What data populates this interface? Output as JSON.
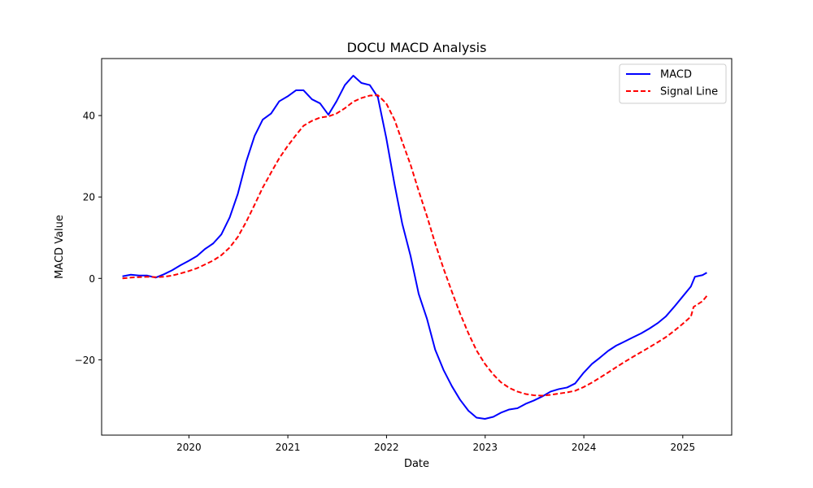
{
  "chart_data": {
    "type": "line",
    "title": "DOCU MACD Analysis",
    "xlabel": "Date",
    "ylabel": "MACD Value",
    "x_axis_type": "date",
    "xlim": [
      "2019-02-12",
      "2025-07-01"
    ],
    "ylim": [
      -38.5,
      54
    ],
    "x_ticks": [
      {
        "date": "2020-01-01",
        "label": "2020"
      },
      {
        "date": "2021-01-01",
        "label": "2021"
      },
      {
        "date": "2022-01-01",
        "label": "2022"
      },
      {
        "date": "2023-01-01",
        "label": "2023"
      },
      {
        "date": "2024-01-01",
        "label": "2024"
      },
      {
        "date": "2025-01-01",
        "label": "2025"
      }
    ],
    "y_ticks": [
      {
        "value": -20,
        "label": "−20"
      },
      {
        "value": 0,
        "label": "0"
      },
      {
        "value": 20,
        "label": "20"
      },
      {
        "value": 40,
        "label": "40"
      }
    ],
    "grid": false,
    "legend_position": "top-right",
    "series": [
      {
        "name": "MACD",
        "color": "#0000ff",
        "style": "solid",
        "points": [
          [
            "2019-04-30",
            0.5
          ],
          [
            "2019-05-31",
            0.9
          ],
          [
            "2019-06-30",
            0.7
          ],
          [
            "2019-07-31",
            0.7
          ],
          [
            "2019-08-31",
            0.2
          ],
          [
            "2019-09-30",
            1.0
          ],
          [
            "2019-10-31",
            2.0
          ],
          [
            "2019-11-30",
            3.2
          ],
          [
            "2019-12-31",
            4.3
          ],
          [
            "2020-01-31",
            5.5
          ],
          [
            "2020-02-29",
            7.2
          ],
          [
            "2020-03-31",
            8.6
          ],
          [
            "2020-04-30",
            10.8
          ],
          [
            "2020-05-31",
            15.0
          ],
          [
            "2020-06-30",
            20.8
          ],
          [
            "2020-07-31",
            28.7
          ],
          [
            "2020-08-31",
            35.0
          ],
          [
            "2020-09-30",
            39.0
          ],
          [
            "2020-10-31",
            40.5
          ],
          [
            "2020-11-30",
            43.5
          ],
          [
            "2020-12-31",
            44.7
          ],
          [
            "2021-01-31",
            46.2
          ],
          [
            "2021-02-28",
            46.2
          ],
          [
            "2021-03-31",
            44.0
          ],
          [
            "2021-04-30",
            43.0
          ],
          [
            "2021-05-31",
            40.2
          ],
          [
            "2021-06-30",
            43.5
          ],
          [
            "2021-07-31",
            47.5
          ],
          [
            "2021-08-31",
            49.8
          ],
          [
            "2021-09-30",
            48.0
          ],
          [
            "2021-10-31",
            47.5
          ],
          [
            "2021-11-30",
            44.5
          ],
          [
            "2021-12-31",
            34.5
          ],
          [
            "2022-01-31",
            23.0
          ],
          [
            "2022-02-28",
            13.5
          ],
          [
            "2022-03-31",
            5.5
          ],
          [
            "2022-04-30",
            -3.8
          ],
          [
            "2022-05-31",
            -10.0
          ],
          [
            "2022-06-30",
            -17.5
          ],
          [
            "2022-07-31",
            -22.5
          ],
          [
            "2022-08-31",
            -26.5
          ],
          [
            "2022-09-30",
            -29.8
          ],
          [
            "2022-10-31",
            -32.5
          ],
          [
            "2022-11-30",
            -34.2
          ],
          [
            "2022-12-31",
            -34.5
          ],
          [
            "2023-01-31",
            -34.0
          ],
          [
            "2023-02-28",
            -33.0
          ],
          [
            "2023-03-31",
            -32.2
          ],
          [
            "2023-04-30",
            -31.9
          ],
          [
            "2023-05-31",
            -30.8
          ],
          [
            "2023-06-30",
            -30.0
          ],
          [
            "2023-07-31",
            -29.0
          ],
          [
            "2023-08-31",
            -27.8
          ],
          [
            "2023-09-30",
            -27.2
          ],
          [
            "2023-10-31",
            -26.8
          ],
          [
            "2023-11-30",
            -25.8
          ],
          [
            "2023-12-31",
            -23.2
          ],
          [
            "2024-01-31",
            -21.0
          ],
          [
            "2024-02-29",
            -19.5
          ],
          [
            "2024-03-31",
            -17.8
          ],
          [
            "2024-04-30",
            -16.5
          ],
          [
            "2024-05-31",
            -15.5
          ],
          [
            "2024-06-30",
            -14.5
          ],
          [
            "2024-07-31",
            -13.5
          ],
          [
            "2024-08-31",
            -12.3
          ],
          [
            "2024-09-30",
            -11.0
          ],
          [
            "2024-10-31",
            -9.3
          ],
          [
            "2024-11-30",
            -7.0
          ],
          [
            "2024-12-31",
            -4.5
          ],
          [
            "2025-01-31",
            -2.0
          ],
          [
            "2025-02-05",
            -1.2
          ],
          [
            "2025-02-15",
            0.4
          ],
          [
            "2025-03-15",
            0.8
          ],
          [
            "2025-03-31",
            1.4
          ]
        ]
      },
      {
        "name": "Signal Line",
        "color": "#ff0000",
        "style": "dashed",
        "points": [
          [
            "2019-04-30",
            0.0
          ],
          [
            "2019-05-31",
            0.2
          ],
          [
            "2019-06-30",
            0.3
          ],
          [
            "2019-07-31",
            0.4
          ],
          [
            "2019-08-31",
            0.3
          ],
          [
            "2019-09-30",
            0.4
          ],
          [
            "2019-10-31",
            0.7
          ],
          [
            "2019-11-30",
            1.2
          ],
          [
            "2019-12-31",
            1.8
          ],
          [
            "2020-01-31",
            2.5
          ],
          [
            "2020-02-29",
            3.4
          ],
          [
            "2020-03-31",
            4.4
          ],
          [
            "2020-04-30",
            5.7
          ],
          [
            "2020-05-31",
            7.6
          ],
          [
            "2020-06-30",
            10.2
          ],
          [
            "2020-07-31",
            13.9
          ],
          [
            "2020-08-31",
            18.1
          ],
          [
            "2020-09-30",
            22.3
          ],
          [
            "2020-10-31",
            26.0
          ],
          [
            "2020-11-30",
            29.5
          ],
          [
            "2020-12-31",
            32.5
          ],
          [
            "2021-01-31",
            35.2
          ],
          [
            "2021-02-28",
            37.5
          ],
          [
            "2021-03-31",
            38.7
          ],
          [
            "2021-04-30",
            39.5
          ],
          [
            "2021-05-31",
            39.8
          ],
          [
            "2021-06-30",
            40.5
          ],
          [
            "2021-07-31",
            41.8
          ],
          [
            "2021-08-31",
            43.4
          ],
          [
            "2021-09-30",
            44.3
          ],
          [
            "2021-10-31",
            44.9
          ],
          [
            "2021-11-30",
            45.0
          ],
          [
            "2021-12-31",
            43.0
          ],
          [
            "2022-01-31",
            38.9
          ],
          [
            "2022-02-28",
            33.6
          ],
          [
            "2022-03-31",
            27.9
          ],
          [
            "2022-04-30",
            21.5
          ],
          [
            "2022-05-31",
            15.2
          ],
          [
            "2022-06-30",
            8.6
          ],
          [
            "2022-07-31",
            2.4
          ],
          [
            "2022-08-31",
            -3.3
          ],
          [
            "2022-09-30",
            -8.6
          ],
          [
            "2022-10-31",
            -13.5
          ],
          [
            "2022-11-30",
            -17.7
          ],
          [
            "2022-12-31",
            -21.0
          ],
          [
            "2023-01-31",
            -23.6
          ],
          [
            "2023-02-28",
            -25.5
          ],
          [
            "2023-03-31",
            -26.9
          ],
          [
            "2023-04-30",
            -27.8
          ],
          [
            "2023-05-31",
            -28.4
          ],
          [
            "2023-06-30",
            -28.7
          ],
          [
            "2023-07-31",
            -28.8
          ],
          [
            "2023-08-31",
            -28.6
          ],
          [
            "2023-09-30",
            -28.3
          ],
          [
            "2023-10-31",
            -28.0
          ],
          [
            "2023-11-30",
            -27.6
          ],
          [
            "2023-12-31",
            -26.7
          ],
          [
            "2024-01-31",
            -25.6
          ],
          [
            "2024-02-29",
            -24.4
          ],
          [
            "2024-03-31",
            -23.1
          ],
          [
            "2024-04-30",
            -21.8
          ],
          [
            "2024-05-31",
            -20.5
          ],
          [
            "2024-06-30",
            -19.3
          ],
          [
            "2024-07-31",
            -18.1
          ],
          [
            "2024-08-31",
            -16.9
          ],
          [
            "2024-09-30",
            -15.7
          ],
          [
            "2024-10-31",
            -14.4
          ],
          [
            "2024-11-30",
            -12.9
          ],
          [
            "2024-12-31",
            -11.2
          ],
          [
            "2025-01-31",
            -9.4
          ],
          [
            "2025-02-10",
            -7.0
          ],
          [
            "2025-03-15",
            -5.6
          ],
          [
            "2025-03-31",
            -4.3
          ]
        ]
      }
    ]
  }
}
